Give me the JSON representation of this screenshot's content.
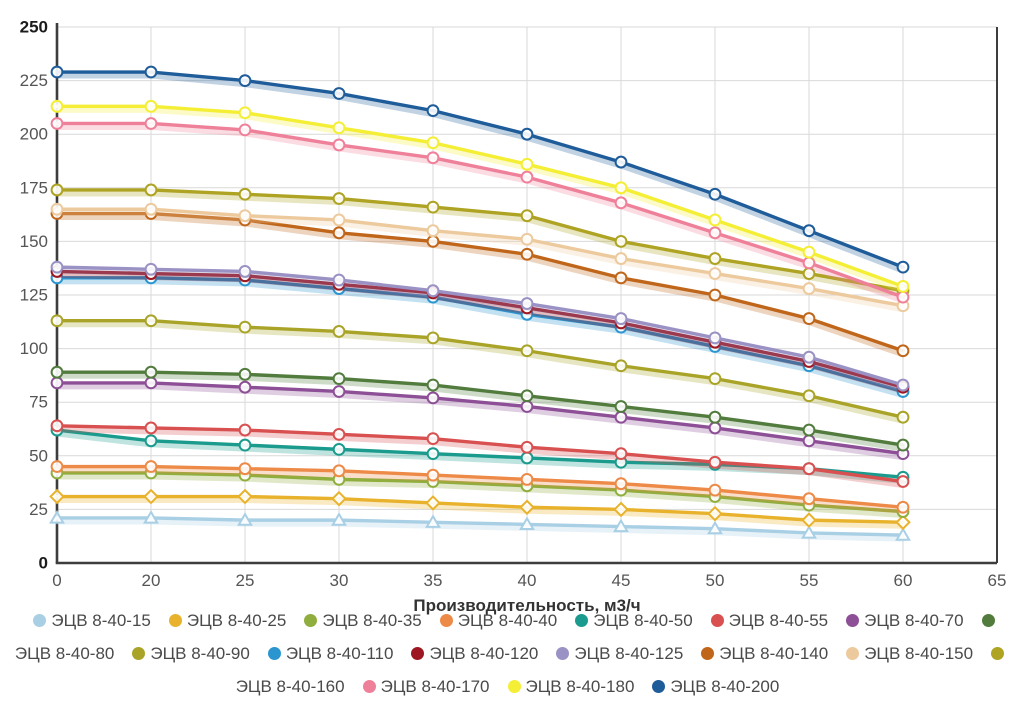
{
  "chart_data": {
    "type": "line",
    "title": "",
    "xlabel": "Производительность, м3/ч",
    "ylabel": "",
    "ylim": [
      0,
      250
    ],
    "y_ticks": [
      0,
      25,
      50,
      75,
      100,
      125,
      150,
      175,
      200,
      225,
      250
    ],
    "bold_y_ticks": [
      0,
      250
    ],
    "x_axis_labels": [
      "0",
      "20",
      "25",
      "30",
      "35",
      "40",
      "45",
      "50",
      "55",
      "60",
      "65"
    ],
    "x_values": [
      0,
      20,
      25,
      30,
      35,
      40,
      45,
      50,
      55,
      60
    ],
    "grid": true,
    "legend_position": "bottom",
    "axis_color": "#3d3d3d",
    "grid_color": "#d9d9d9",
    "label_color": "#555555",
    "series": [
      {
        "name": "ЭЦВ 8-40-15",
        "color": "#a9cfe5",
        "marker": "triangle",
        "values": [
          21,
          21,
          20,
          20,
          19,
          18,
          17,
          16,
          14,
          13
        ]
      },
      {
        "name": "ЭЦВ 8-40-25",
        "color": "#e8b22c",
        "marker": "diamond",
        "values": [
          31,
          31,
          31,
          30,
          28,
          26,
          25,
          23,
          20,
          19
        ]
      },
      {
        "name": "ЭЦВ 8-40-35",
        "color": "#8fae3e",
        "marker": "circle",
        "values": [
          42,
          42,
          41,
          39,
          38,
          36,
          34,
          31,
          27,
          24
        ]
      },
      {
        "name": "ЭЦВ 8-40-40",
        "color": "#ed8a47",
        "marker": "circle",
        "values": [
          45,
          45,
          44,
          43,
          41,
          39,
          37,
          34,
          30,
          26
        ]
      },
      {
        "name": "ЭЦВ 8-40-50",
        "color": "#1a9b8d",
        "marker": "circle",
        "values": [
          62,
          57,
          55,
          53,
          51,
          49,
          47,
          46,
          44,
          40
        ]
      },
      {
        "name": "ЭЦВ 8-40-55",
        "color": "#d85050",
        "marker": "circle",
        "values": [
          64,
          63,
          62,
          60,
          58,
          54,
          51,
          47,
          44,
          38
        ]
      },
      {
        "name": "ЭЦВ 8-40-70",
        "color": "#8d4f96",
        "marker": "circle",
        "values": [
          84,
          84,
          82,
          80,
          77,
          73,
          68,
          63,
          57,
          51
        ]
      },
      {
        "name": "ЭЦВ 8-40-80",
        "color": "#527c3e",
        "marker": "circle",
        "values": [
          89,
          89,
          88,
          86,
          83,
          78,
          73,
          68,
          62,
          55
        ]
      },
      {
        "name": "ЭЦВ 8-40-90",
        "color": "#a9a428",
        "marker": "circle",
        "values": [
          113,
          113,
          110,
          108,
          105,
          99,
          92,
          86,
          78,
          68
        ]
      },
      {
        "name": "ЭЦВ 8-40-110",
        "color": "#2b95cf",
        "marker": "circle",
        "values": [
          133,
          133,
          132,
          128,
          124,
          116,
          110,
          101,
          92,
          80
        ]
      },
      {
        "name": "ЭЦВ 8-40-120",
        "color": "#9c1722",
        "marker": "circle",
        "values": [
          136,
          135,
          134,
          130,
          126,
          119,
          112,
          103,
          94,
          82
        ]
      },
      {
        "name": "ЭЦВ 8-40-125",
        "color": "#9a92c4",
        "marker": "circle",
        "values": [
          138,
          137,
          136,
          132,
          127,
          121,
          114,
          105,
          96,
          83
        ]
      },
      {
        "name": "ЭЦВ 8-40-140",
        "color": "#c0661a",
        "marker": "circle",
        "values": [
          163,
          163,
          160,
          154,
          150,
          144,
          133,
          125,
          114,
          99
        ]
      },
      {
        "name": "ЭЦВ 8-40-150",
        "color": "#edca9d",
        "marker": "circle",
        "values": [
          165,
          165,
          162,
          160,
          155,
          151,
          142,
          135,
          128,
          120
        ]
      },
      {
        "name": "ЭЦВ 8-40-160",
        "color": "#aea322",
        "marker": "circle",
        "values": [
          174,
          174,
          172,
          170,
          166,
          162,
          150,
          142,
          135,
          127
        ]
      },
      {
        "name": "ЭЦВ 8-40-170",
        "color": "#ef8099",
        "marker": "circle",
        "values": [
          205,
          205,
          202,
          195,
          189,
          180,
          168,
          154,
          140,
          124
        ]
      },
      {
        "name": "ЭЦВ 8-40-180",
        "color": "#f4ee35",
        "marker": "circle",
        "values": [
          213,
          213,
          210,
          203,
          196,
          186,
          175,
          160,
          145,
          129
        ]
      },
      {
        "name": "ЭЦВ 8-40-200",
        "color": "#1f5c9a",
        "marker": "circle",
        "values": [
          229,
          229,
          225,
          219,
          211,
          200,
          187,
          172,
          155,
          138
        ]
      }
    ]
  }
}
